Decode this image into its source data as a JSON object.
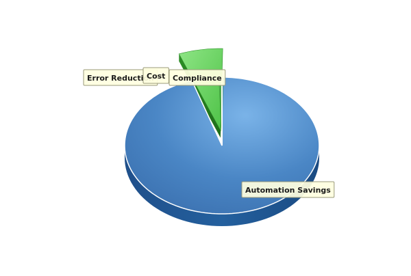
{
  "chart_data": {
    "type": "pie",
    "style": "3d",
    "categories": [
      "Automation Savings",
      "Compliance",
      "Cost",
      "Error Reduction"
    ],
    "values": [
      95,
      4.5,
      0.3,
      0.2
    ],
    "series": [
      {
        "values": [
          95,
          4.5,
          0.3,
          0.2
        ]
      }
    ],
    "labels": [
      {
        "text": "Automation Savings"
      },
      {
        "text": "Compliance"
      },
      {
        "text": "Cost"
      },
      {
        "text": "Error Reduction"
      }
    ],
    "colors": {
      "Automation Savings": "#4a86c5",
      "Compliance": "#6fd36a",
      "Cost": "#5cb85c",
      "Error Reduction": "#4caa4a",
      "label_background": "#ffffe0",
      "label_border": "#9a9a7a"
    },
    "legend": "none"
  }
}
